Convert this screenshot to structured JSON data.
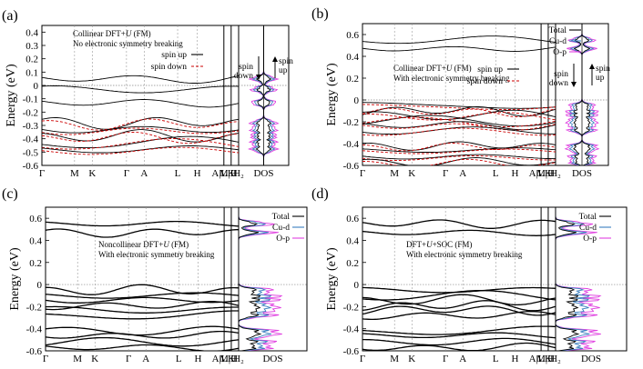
{
  "figure": {
    "panels": [
      {
        "label": "(a)",
        "annotation": [
          "Collinear DFT+U (FM)",
          "No electronic symmetry breaking"
        ],
        "legend": [
          {
            "label": "spin up",
            "color": "#000000",
            "dash": false
          },
          {
            "label": "spin down",
            "color": "#cc0000",
            "dash": true
          }
        ],
        "dos_legend": [],
        "dos_arrows": {
          "down": "spin down",
          "up": "spin up"
        }
      },
      {
        "label": "(b)",
        "annotation": [
          "Collinear DFT+U (FM)",
          "With electronic symmetry breaking"
        ],
        "legend": [
          {
            "label": "spin up",
            "color": "#000000",
            "dash": false
          },
          {
            "label": "spin down",
            "color": "#cc0000",
            "dash": true
          }
        ],
        "dos_legend": [
          {
            "label": "Total",
            "color": "#000000"
          },
          {
            "label": "Cu-d",
            "color": "#3a7fc0"
          },
          {
            "label": "O-p",
            "color": "#e040e0"
          }
        ],
        "dos_arrows": {
          "down": "spin down",
          "up": "spin up"
        }
      },
      {
        "label": "(c)",
        "annotation": [
          "Noncollinear DFT+U (FM)",
          "With electronic symmetry breaking"
        ],
        "legend": [],
        "dos_legend": [
          {
            "label": "Total",
            "color": "#000000"
          },
          {
            "label": "Cu-d",
            "color": "#3a7fc0"
          },
          {
            "label": "O-p",
            "color": "#e040e0"
          }
        ],
        "dos_arrows": null
      },
      {
        "label": "(d)",
        "annotation": [
          "DFT+U+SOC (FM)",
          "With electronic symmetry breaking"
        ],
        "legend": [],
        "dos_legend": [
          {
            "label": "Total",
            "color": "#000000"
          },
          {
            "label": "Cu-d",
            "color": "#3a7fc0"
          },
          {
            "label": "O-p",
            "color": "#e040e0"
          }
        ],
        "dos_arrows": null
      }
    ],
    "ylabel": "Energy (eV)",
    "dos_xlabel": "DOS",
    "kpath_labels": [
      "Γ",
      "M",
      "K",
      "Γ",
      "A",
      "L",
      "H",
      "A|L",
      "M|H",
      "K",
      "H₂"
    ],
    "colors": {
      "spin_up": "#000000",
      "spin_down": "#cc0000",
      "total": "#000000",
      "cu_d": "#3a7fc0",
      "o_p": "#e040e0"
    }
  },
  "chart_data": [
    {
      "type": "line",
      "panel": "(a)",
      "ylabel": "Energy (eV)",
      "ylim": [
        -0.6,
        0.45
      ],
      "yticks": [
        "0.4",
        "0.3",
        "0.2",
        "0.1",
        "0",
        "-0.1",
        "-0.2",
        "-0.3",
        "-0.4",
        "-0.5",
        "-0.6"
      ],
      "xticks": [
        "Γ",
        "M",
        "K",
        "Γ",
        "A",
        "L",
        "H",
        "A|L",
        "M|H",
        "K",
        "H₂"
      ],
      "series": [
        {
          "name": "spin up"
        },
        {
          "name": "spin down"
        }
      ]
    },
    {
      "type": "line",
      "panel": "(b)",
      "ylabel": "Energy (eV)",
      "ylim": [
        -0.6,
        0.7
      ],
      "yticks": [
        "0.6",
        "0.4",
        "0.2",
        "0",
        "-0.2",
        "-0.4",
        "-0.6"
      ],
      "xticks": [
        "Γ",
        "M",
        "K",
        "Γ",
        "A",
        "L",
        "H",
        "A|L",
        "M|H",
        "K",
        "H₂"
      ],
      "series": [
        {
          "name": "spin up"
        },
        {
          "name": "spin down"
        }
      ]
    },
    {
      "type": "line",
      "panel": "(c)",
      "ylabel": "Energy (eV)",
      "ylim": [
        -0.6,
        0.7
      ],
      "yticks": [
        "0.6",
        "0.4",
        "0.2",
        "0",
        "-0.2",
        "-0.4",
        "-0.6"
      ],
      "xticks": [
        "Γ",
        "M",
        "K",
        "Γ",
        "A",
        "L",
        "H",
        "A|L",
        "M|H",
        "K",
        "H₂"
      ]
    },
    {
      "type": "line",
      "panel": "(d)",
      "ylabel": "Energy (eV)",
      "ylim": [
        -0.6,
        0.7
      ],
      "yticks": [
        "0.6",
        "0.4",
        "0.2",
        "0",
        "-0.2",
        "-0.4",
        "-0.6"
      ],
      "xticks": [
        "Γ",
        "M",
        "K",
        "Γ",
        "A",
        "L",
        "H",
        "A|L",
        "M|H",
        "K",
        "H₂"
      ]
    }
  ]
}
